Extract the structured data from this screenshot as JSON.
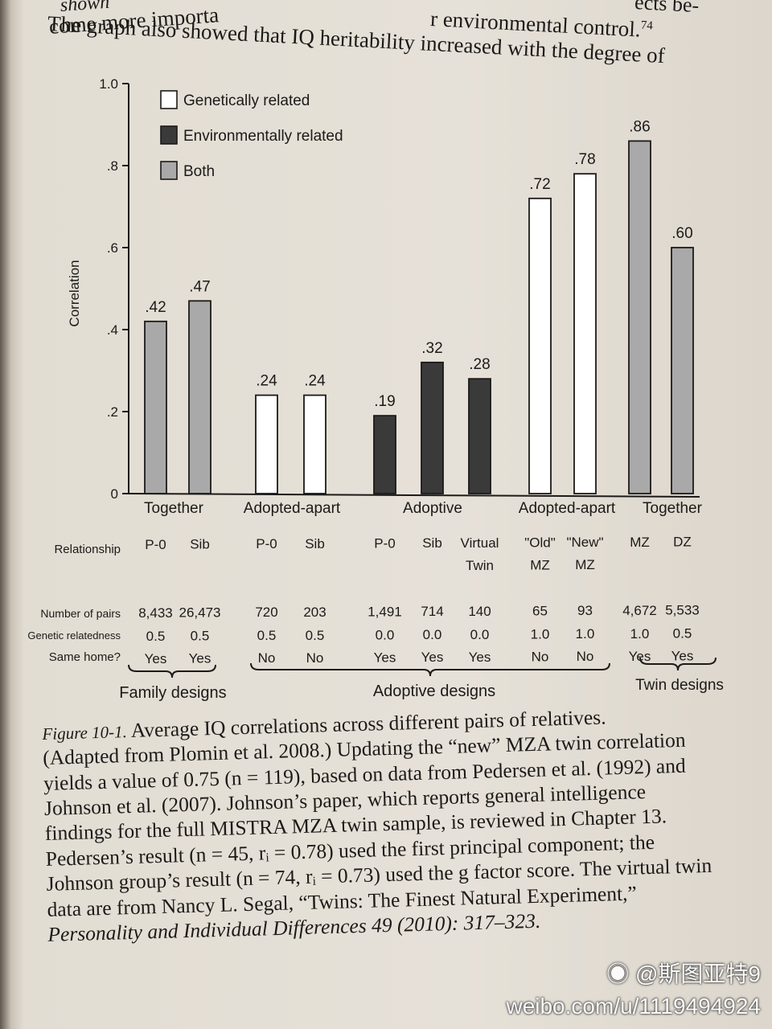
{
  "page_text": {
    "line1": "shown",
    "line2": "come more importa",
    "line3": "The graph also showed that IQ heritability increased with the degree of"
  },
  "page_text_right": {
    "line1": "ects be-",
    "line2": "r environmental control.",
    "sup": "74"
  },
  "chart_data": {
    "type": "bar",
    "title": "",
    "xlabel": "",
    "ylabel": "Correlation",
    "ylim": [
      0,
      1.0
    ],
    "yticks": [
      {
        "v": 0,
        "label": "0"
      },
      {
        "v": 0.2,
        "label": ".2"
      },
      {
        "v": 0.4,
        "label": ".4"
      },
      {
        "v": 0.6,
        "label": ".6"
      },
      {
        "v": 0.8,
        "label": ".8"
      },
      {
        "v": 1.0,
        "label": "1.0"
      }
    ],
    "legend": [
      {
        "label": "Genetically related",
        "color": "#ffffff"
      },
      {
        "label": "Environmentally related",
        "color": "#3a3a3a"
      },
      {
        "label": "Both",
        "color": "#a9a9a9"
      }
    ],
    "legend_position": "top-left",
    "grid": false,
    "bars": [
      {
        "value": 0.42,
        "label": ".42",
        "kind": "Both",
        "color": "#a9a9a9",
        "relationship": [
          "P-0"
        ],
        "pairs": "8,433",
        "genetic": "0.5",
        "same_home": "Yes"
      },
      {
        "value": 0.47,
        "label": ".47",
        "kind": "Both",
        "color": "#a9a9a9",
        "relationship": [
          "Sib"
        ],
        "pairs": "26,473",
        "genetic": "0.5",
        "same_home": "Yes"
      },
      {
        "value": 0.24,
        "label": ".24",
        "kind": "Genetically related",
        "color": "#ffffff",
        "relationship": [
          "P-0"
        ],
        "pairs": "720",
        "genetic": "0.5",
        "same_home": "No"
      },
      {
        "value": 0.24,
        "label": ".24",
        "kind": "Genetically related",
        "color": "#ffffff",
        "relationship": [
          "Sib"
        ],
        "pairs": "203",
        "genetic": "0.5",
        "same_home": "No"
      },
      {
        "value": 0.19,
        "label": ".19",
        "kind": "Environmentally related",
        "color": "#3a3a3a",
        "relationship": [
          "P-0"
        ],
        "pairs": "1,491",
        "genetic": "0.0",
        "same_home": "Yes"
      },
      {
        "value": 0.32,
        "label": ".32",
        "kind": "Environmentally related",
        "color": "#3a3a3a",
        "relationship": [
          "Sib"
        ],
        "pairs": "714",
        "genetic": "0.0",
        "same_home": "Yes"
      },
      {
        "value": 0.28,
        "label": ".28",
        "kind": "Environmentally related",
        "color": "#3a3a3a",
        "relationship": [
          "Virtual",
          "Twin"
        ],
        "pairs": "140",
        "genetic": "0.0",
        "same_home": "Yes"
      },
      {
        "value": 0.72,
        "label": ".72",
        "kind": "Genetically related",
        "color": "#ffffff",
        "relationship": [
          "\"Old\"",
          "MZ"
        ],
        "pairs": "65",
        "genetic": "1.0",
        "same_home": "No"
      },
      {
        "value": 0.78,
        "label": ".78",
        "kind": "Genetically related",
        "color": "#ffffff",
        "relationship": [
          "\"New\"",
          "MZ"
        ],
        "pairs": "93",
        "genetic": "1.0",
        "same_home": "No"
      },
      {
        "value": 0.86,
        "label": ".86",
        "kind": "Both",
        "color": "#a9a9a9",
        "relationship": [
          "MZ"
        ],
        "pairs": "4,672",
        "genetic": "1.0",
        "same_home": "Yes"
      },
      {
        "value": 0.6,
        "label": ".60",
        "kind": "Both",
        "color": "#a9a9a9",
        "relationship": [
          "DZ"
        ],
        "pairs": "5,533",
        "genetic": "0.5",
        "same_home": "Yes"
      }
    ],
    "groups": [
      "Together",
      "Adopted-apart",
      "Adoptive",
      "Adopted-apart",
      "Together"
    ],
    "row_labels": {
      "relationship": "Relationship",
      "pairs": "Number of pairs",
      "genetic": "Genetic relatedness",
      "same_home": "Same home?"
    },
    "designs": [
      "Family designs",
      "Adoptive designs",
      "Twin designs"
    ]
  },
  "caption": {
    "label": "Figure 10-1.",
    "lines": [
      "Average IQ correlations across different pairs of relatives.",
      "(Adapted from Plomin et al. 2008.) Updating the “new” MZA twin correlation",
      "yields a value of 0.75 (n = 119), based on data from Pedersen et al. (1992) and",
      "Johnson et al. (2007). Johnson’s paper, which reports general intelligence",
      "findings for the full MISTRA MZA twin sample, is reviewed in Chapter 13.",
      "Pedersen’s result (n = 45, rᵢ = 0.78) used the first principal component; the",
      "Johnson group’s result (n = 74, rᵢ = 0.73) used the g factor score. The virtual twin",
      "data are from Nancy L. Segal, “Twins: The Finest Natural Experiment,”",
      "Personality and Individual Differences 49 (2010): 317–323."
    ]
  },
  "watermark": {
    "handle": "@斯图亚特9",
    "url": "weibo.com/u/1119494924"
  }
}
